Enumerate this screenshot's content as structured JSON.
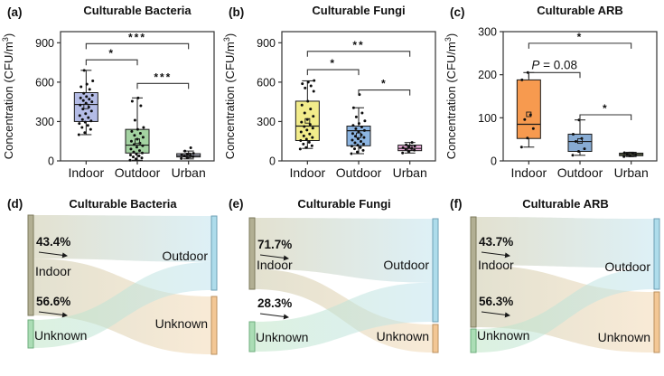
{
  "figure": {
    "background": "#ffffff"
  },
  "chart_data": [
    {
      "id": "a",
      "type": "box",
      "letter": "(a)",
      "title": "Culturable Bacteria",
      "ylabel": "Concentration (CFU/m³)",
      "ylim": [
        0,
        985
      ],
      "yticks": [
        0,
        300,
        600,
        900
      ],
      "categories": [
        "Indoor",
        "Outdoor",
        "Urban"
      ],
      "boxes": [
        {
          "category": "Indoor",
          "color": "#b4bce6",
          "q1": 300,
          "median": 430,
          "q3": 520,
          "whisker_low": 200,
          "whisker_high": 690,
          "mean": 415,
          "points": [
            200,
            215,
            240,
            255,
            270,
            285,
            295,
            305,
            315,
            330,
            345,
            360,
            380,
            395,
            410,
            425,
            440,
            450,
            460,
            470,
            480,
            490,
            500,
            515,
            545,
            565,
            585,
            610,
            690
          ]
        },
        {
          "category": "Outdoor",
          "color": "#a4d3a2",
          "q1": 60,
          "median": 120,
          "q3": 240,
          "whisker_low": 5,
          "whisker_high": 480,
          "mean": 150,
          "points": [
            5,
            15,
            22,
            30,
            38,
            45,
            52,
            60,
            68,
            78,
            90,
            105,
            115,
            125,
            135,
            150,
            165,
            180,
            195,
            210,
            225,
            240,
            255,
            310,
            420,
            455,
            480
          ]
        },
        {
          "category": "Urban",
          "color": "#c6cadd",
          "q1": 30,
          "median": 40,
          "q3": 55,
          "whisker_low": 15,
          "whisker_high": 75,
          "mean": 42,
          "points": [
            18,
            26,
            32,
            38,
            42,
            46,
            52,
            58,
            75,
            100
          ]
        }
      ],
      "brackets": [
        {
          "from": 0,
          "to": 1,
          "label": "*",
          "y": 770
        },
        {
          "from": 0,
          "to": 2,
          "label": "***",
          "y": 893
        },
        {
          "from": 1,
          "to": 2,
          "label": "***",
          "y": 590
        }
      ]
    },
    {
      "id": "b",
      "type": "box",
      "letter": "(b)",
      "title": "Culturable Fungi",
      "ylabel": "Concentration (CFU/m³)",
      "ylim": [
        0,
        985
      ],
      "yticks": [
        0,
        300,
        600,
        900
      ],
      "categories": [
        "Indoor",
        "Outdoor",
        "Urban"
      ],
      "boxes": [
        {
          "category": "Indoor",
          "color": "#f2ec8b",
          "q1": 155,
          "median": 265,
          "q3": 455,
          "whisker_low": 95,
          "whisker_high": 610,
          "mean": 305,
          "points": [
            90,
            102,
            115,
            128,
            142,
            155,
            165,
            178,
            190,
            205,
            220,
            235,
            250,
            262,
            278,
            295,
            315,
            340,
            365,
            395,
            425,
            455,
            530,
            555,
            572,
            588,
            600,
            612
          ]
        },
        {
          "category": "Outdoor",
          "color": "#8cb5e2",
          "q1": 115,
          "median": 230,
          "q3": 265,
          "whisker_low": 55,
          "whisker_high": 405,
          "mean": 195,
          "points": [
            55,
            68,
            80,
            92,
            102,
            112,
            120,
            128,
            138,
            148,
            158,
            168,
            178,
            188,
            198,
            208,
            220,
            232,
            245,
            258,
            270,
            285,
            305,
            335,
            365,
            405,
            505
          ]
        },
        {
          "category": "Urban",
          "color": "#eeb0dd",
          "q1": 78,
          "median": 95,
          "q3": 120,
          "whisker_low": 60,
          "whisker_high": 140,
          "mean": 98,
          "points": [
            60,
            72,
            82,
            90,
            96,
            101,
            107,
            113,
            122,
            140
          ]
        }
      ],
      "brackets": [
        {
          "from": 0,
          "to": 1,
          "label": "*",
          "y": 695
        },
        {
          "from": 0,
          "to": 2,
          "label": "**",
          "y": 835
        },
        {
          "from": 1,
          "to": 2,
          "label": "*",
          "y": 540
        }
      ]
    },
    {
      "id": "c",
      "type": "box",
      "letter": "(c)",
      "title": "Culturable ARB",
      "ylabel": "Concentration (CFU/m³)",
      "ylim": [
        0,
        300
      ],
      "yticks": [
        0,
        100,
        200,
        300
      ],
      "categories": [
        "Indoor",
        "Outdoor",
        "Urban"
      ],
      "boxes": [
        {
          "category": "Indoor",
          "color": "#f79a4f",
          "q1": 52,
          "median": 85,
          "q3": 188,
          "whisker_low": 32,
          "whisker_high": 205,
          "mean": 108,
          "points": [
            32,
            53,
            75,
            96,
            107,
            188,
            205
          ]
        },
        {
          "category": "Outdoor",
          "color": "#87abd3",
          "q1": 22,
          "median": 45,
          "q3": 62,
          "whisker_low": 13,
          "whisker_high": 95,
          "mean": 46,
          "points": [
            13,
            22,
            28,
            45,
            52,
            62,
            95
          ]
        },
        {
          "category": "Urban",
          "color": "#b4c585",
          "q1": 12,
          "median": 15,
          "q3": 18,
          "whisker_low": 10,
          "whisker_high": 20,
          "mean": 15,
          "points": [
            10,
            12,
            14,
            15,
            17,
            19
          ]
        }
      ],
      "brackets": [
        {
          "from": 0,
          "to": 1,
          "label": "P = 0.08",
          "y": 205
        },
        {
          "from": 0,
          "to": 2,
          "label": "*",
          "y": 273
        },
        {
          "from": 1,
          "to": 2,
          "label": "*",
          "y": 107
        }
      ]
    },
    {
      "id": "d",
      "type": "sankey",
      "letter": "(d)",
      "title": "Culturable Bacteria",
      "nodes": {
        "left": [
          {
            "label": "Indoor",
            "color": "#b2af93",
            "border": "#7e7b5e",
            "y0": 28,
            "y1": 139
          },
          {
            "label": "Unknown",
            "color": "#abddb5",
            "border": "#6fae7e",
            "y0": 144,
            "y1": 175
          }
        ],
        "right": [
          {
            "label": "Outdoor",
            "color": "#aedceb",
            "border": "#6e9fb5",
            "y0": 29,
            "y1": 111
          },
          {
            "label": "Unknown",
            "color": "#f3c795",
            "border": "#bb9260",
            "y0": 118,
            "y1": 182
          }
        ]
      },
      "flows": [
        {
          "from": 0,
          "to": 0,
          "fromSpan": [
            0,
            0.434
          ],
          "toSpan": [
            0,
            0.62
          ],
          "c1": "#c9c6a6",
          "c2": "#bfe3ee",
          "pct": "43.4%"
        },
        {
          "from": 0,
          "to": 1,
          "fromSpan": [
            0.434,
            1
          ],
          "toSpan": [
            0,
            1
          ],
          "c1": "#c9c6a6",
          "c2": "#f3d8b2",
          "pct": "56.6%"
        },
        {
          "from": 1,
          "to": 0,
          "fromSpan": [
            0,
            1
          ],
          "toSpan": [
            0.62,
            1
          ],
          "c1": "#bce4c4",
          "c2": "#bfe3ee",
          "pct": ""
        }
      ],
      "pct_labels": [
        {
          "text": "43.4%",
          "x": 40,
          "y": 62
        },
        {
          "text": "56.6%",
          "x": 40,
          "y": 128
        }
      ],
      "node_labels": [
        {
          "text": "Indoor",
          "x": 39,
          "y": 95,
          "anchor": "start"
        },
        {
          "text": "Unknown",
          "x": 38,
          "y": 166,
          "anchor": "start"
        },
        {
          "text": "Outdoor",
          "x": 230,
          "y": 78,
          "anchor": "end"
        },
        {
          "text": "Unknown",
          "x": 230,
          "y": 153,
          "anchor": "end"
        }
      ]
    },
    {
      "id": "e",
      "type": "sankey",
      "letter": "(e)",
      "title": "Culturable Fungi",
      "nodes": {
        "left": [
          {
            "label": "Indoor",
            "color": "#b2af93",
            "border": "#7e7b5e",
            "y0": 31,
            "y1": 110
          },
          {
            "label": "Unknown",
            "color": "#abddb5",
            "border": "#6fae7e",
            "y0": 146,
            "y1": 179
          }
        ],
        "right": [
          {
            "label": "Outdoor",
            "color": "#aedceb",
            "border": "#6e9fb5",
            "y0": 32,
            "y1": 146
          },
          {
            "label": "Unknown",
            "color": "#f3c795",
            "border": "#bb9260",
            "y0": 149,
            "y1": 180
          }
        ]
      },
      "flows": [
        {
          "from": 0,
          "to": 0,
          "fromSpan": [
            0,
            0.717
          ],
          "toSpan": [
            0,
            0.62
          ],
          "c1": "#c9c6a6",
          "c2": "#bfe3ee",
          "pct": "71.7%"
        },
        {
          "from": 0,
          "to": 1,
          "fromSpan": [
            0.717,
            1
          ],
          "toSpan": [
            0,
            1
          ],
          "c1": "#c9c6a6",
          "c2": "#f3d8b2",
          "pct": "28.3%"
        },
        {
          "from": 1,
          "to": 0,
          "fromSpan": [
            0,
            1
          ],
          "toSpan": [
            0.62,
            1
          ],
          "c1": "#bce4c4",
          "c2": "#bfe3ee",
          "pct": ""
        }
      ],
      "pct_labels": [
        {
          "text": "71.7%",
          "x": 40,
          "y": 65
        },
        {
          "text": "28.3%",
          "x": 40,
          "y": 130
        }
      ],
      "node_labels": [
        {
          "text": "Indoor",
          "x": 39,
          "y": 88,
          "anchor": "start"
        },
        {
          "text": "Unknown",
          "x": 38,
          "y": 168,
          "anchor": "start"
        },
        {
          "text": "Outdoor",
          "x": 230,
          "y": 88,
          "anchor": "end"
        },
        {
          "text": "Unknown",
          "x": 230,
          "y": 167,
          "anchor": "end"
        }
      ]
    },
    {
      "id": "f",
      "type": "sankey",
      "letter": "(f)",
      "title": "Culturable ARB",
      "nodes": {
        "left": [
          {
            "label": "Indoor",
            "color": "#b2af93",
            "border": "#7e7b5e",
            "y0": 30,
            "y1": 152
          },
          {
            "label": "Unknown",
            "color": "#abddb5",
            "border": "#6fae7e",
            "y0": 154,
            "y1": 180
          }
        ],
        "right": [
          {
            "label": "Outdoor",
            "color": "#aedceb",
            "border": "#6e9fb5",
            "y0": 32,
            "y1": 110
          },
          {
            "label": "Unknown",
            "color": "#f3c795",
            "border": "#bb9260",
            "y0": 113,
            "y1": 180
          }
        ]
      },
      "flows": [
        {
          "from": 0,
          "to": 0,
          "fromSpan": [
            0,
            0.437
          ],
          "toSpan": [
            0,
            0.7
          ],
          "c1": "#c9c6a6",
          "c2": "#bfe3ee",
          "pct": "43.7%"
        },
        {
          "from": 0,
          "to": 1,
          "fromSpan": [
            0.437,
            1
          ],
          "toSpan": [
            0,
            1
          ],
          "c1": "#c9c6a6",
          "c2": "#f3d8b2",
          "pct": "56.3%"
        },
        {
          "from": 1,
          "to": 0,
          "fromSpan": [
            0,
            1
          ],
          "toSpan": [
            0.7,
            1
          ],
          "c1": "#bce4c4",
          "c2": "#bfe3ee",
          "pct": ""
        }
      ],
      "pct_labels": [
        {
          "text": "43.7%",
          "x": 40,
          "y": 62
        },
        {
          "text": "56.3%",
          "x": 40,
          "y": 128
        }
      ],
      "node_labels": [
        {
          "text": "Indoor",
          "x": 39,
          "y": 88,
          "anchor": "start"
        },
        {
          "text": "Unknown",
          "x": 38,
          "y": 166,
          "anchor": "start"
        },
        {
          "text": "Outdoor",
          "x": 230,
          "y": 90,
          "anchor": "end"
        },
        {
          "text": "Unknown",
          "x": 230,
          "y": 168,
          "anchor": "end"
        }
      ]
    }
  ]
}
